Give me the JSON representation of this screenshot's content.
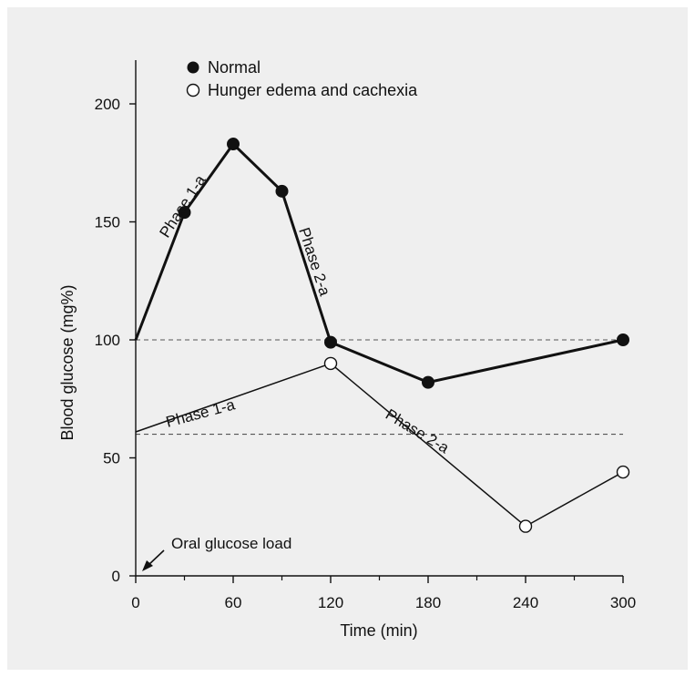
{
  "chart_data": {
    "type": "line",
    "title": "",
    "xlabel": "Time (min)",
    "ylabel": "Blood glucose (mg%)",
    "xlim": [
      0,
      300
    ],
    "ylim": [
      0,
      220
    ],
    "xticks": [
      0,
      60,
      120,
      180,
      240,
      300
    ],
    "xticks_minor": [
      30,
      90,
      150,
      210,
      270
    ],
    "yticks": [
      0,
      50,
      100,
      150,
      200
    ],
    "series": [
      {
        "name": "Normal",
        "marker": "filled-circle",
        "line_weight": "bold",
        "x": [
          0,
          30,
          60,
          90,
          120,
          180,
          300
        ],
        "y": [
          100,
          154,
          183,
          163,
          99,
          82,
          100
        ],
        "marker_x": [
          30,
          60,
          90,
          120,
          180,
          300
        ]
      },
      {
        "name": "Hunger edema and cachexia",
        "marker": "open-circle",
        "line_weight": "thin",
        "x": [
          0,
          120,
          240,
          300
        ],
        "y": [
          61,
          90,
          21,
          44
        ],
        "marker_x": [
          120,
          240,
          300
        ]
      }
    ],
    "reference_lines": [
      {
        "y": 100,
        "style": "dashed"
      },
      {
        "y": 60,
        "style": "dashed"
      }
    ],
    "annotations": [
      {
        "text": "Phase 1-a",
        "series": "Normal"
      },
      {
        "text": "Phase 2-a",
        "series": "Normal"
      },
      {
        "text": "Phase 1-a",
        "series": "Hunger edema and cachexia"
      },
      {
        "text": "Phase 2-a",
        "series": "Hunger edema and cachexia"
      },
      {
        "text": "Oral glucose load",
        "arrow": true
      }
    ],
    "legend": {
      "placement": "top-left",
      "entries": [
        "Normal",
        "Hunger edema and cachexia"
      ]
    },
    "colors": {
      "ink": "#111111",
      "background": "#efefef",
      "open_marker_fill": "#ffffff"
    }
  }
}
